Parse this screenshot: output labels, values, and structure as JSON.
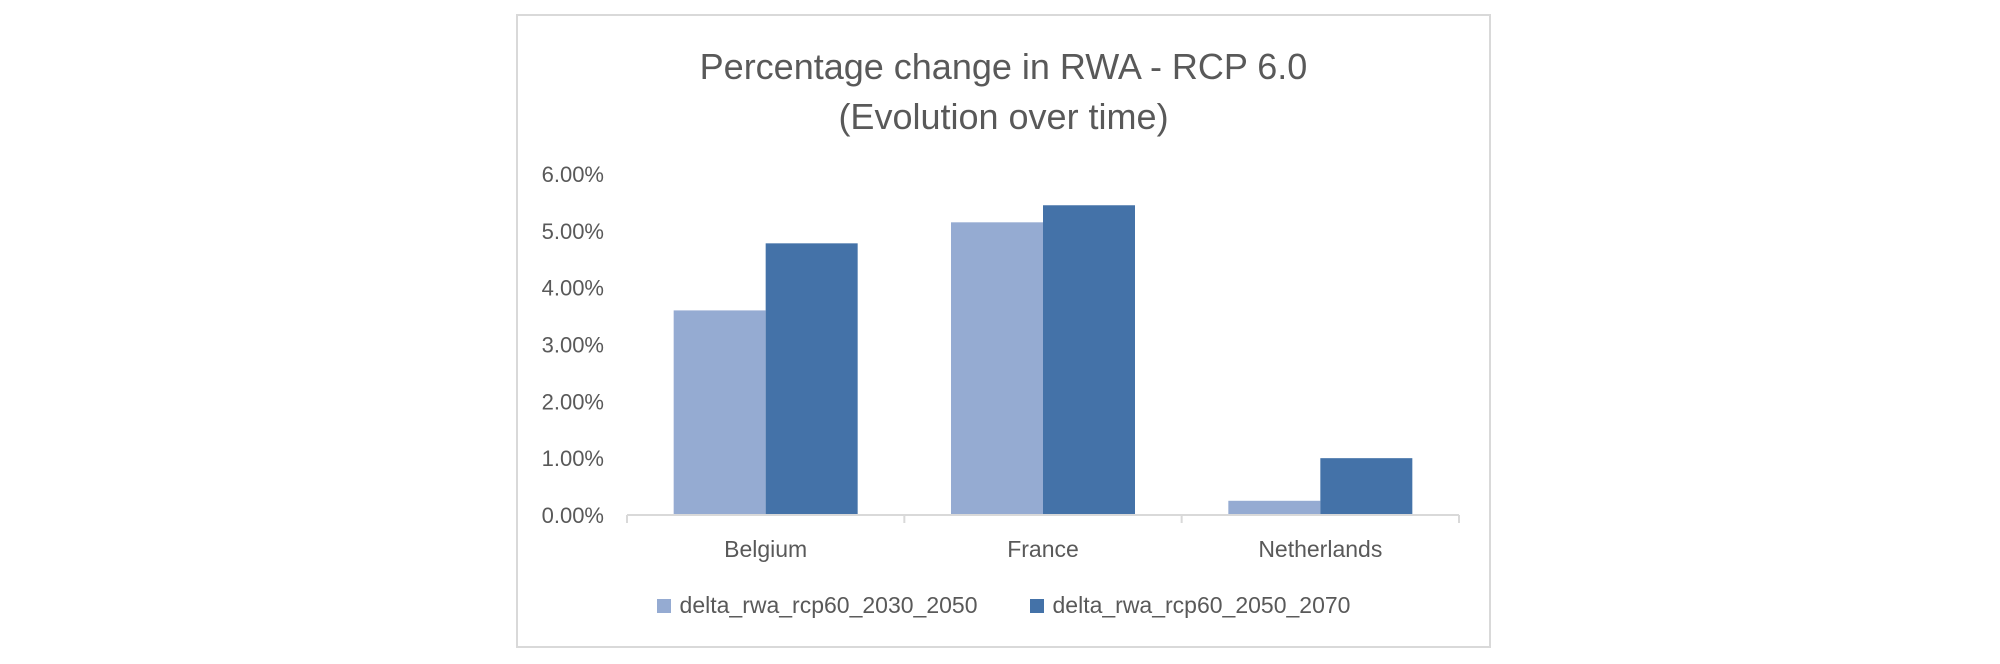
{
  "chart_data": {
    "type": "bar",
    "title_lines": [
      "Percentage change in RWA - RCP 6.0",
      "(Evolution over time)"
    ],
    "categories": [
      "Belgium",
      "France",
      "Netherlands"
    ],
    "series": [
      {
        "name": "delta_rwa_rcp60_2030_2050",
        "values": [
          3.6,
          5.15,
          0.25
        ],
        "color": "#95abd2"
      },
      {
        "name": "delta_rwa_rcp60_2050_2070",
        "values": [
          4.78,
          5.45,
          1.0
        ],
        "color": "#4472a8"
      }
    ],
    "yticks": [
      "0.00%",
      "1.00%",
      "2.00%",
      "3.00%",
      "4.00%",
      "5.00%",
      "6.00%"
    ],
    "ylim": [
      0,
      6
    ],
    "y_unit": "%",
    "grid": false,
    "legend_position": "bottom"
  }
}
